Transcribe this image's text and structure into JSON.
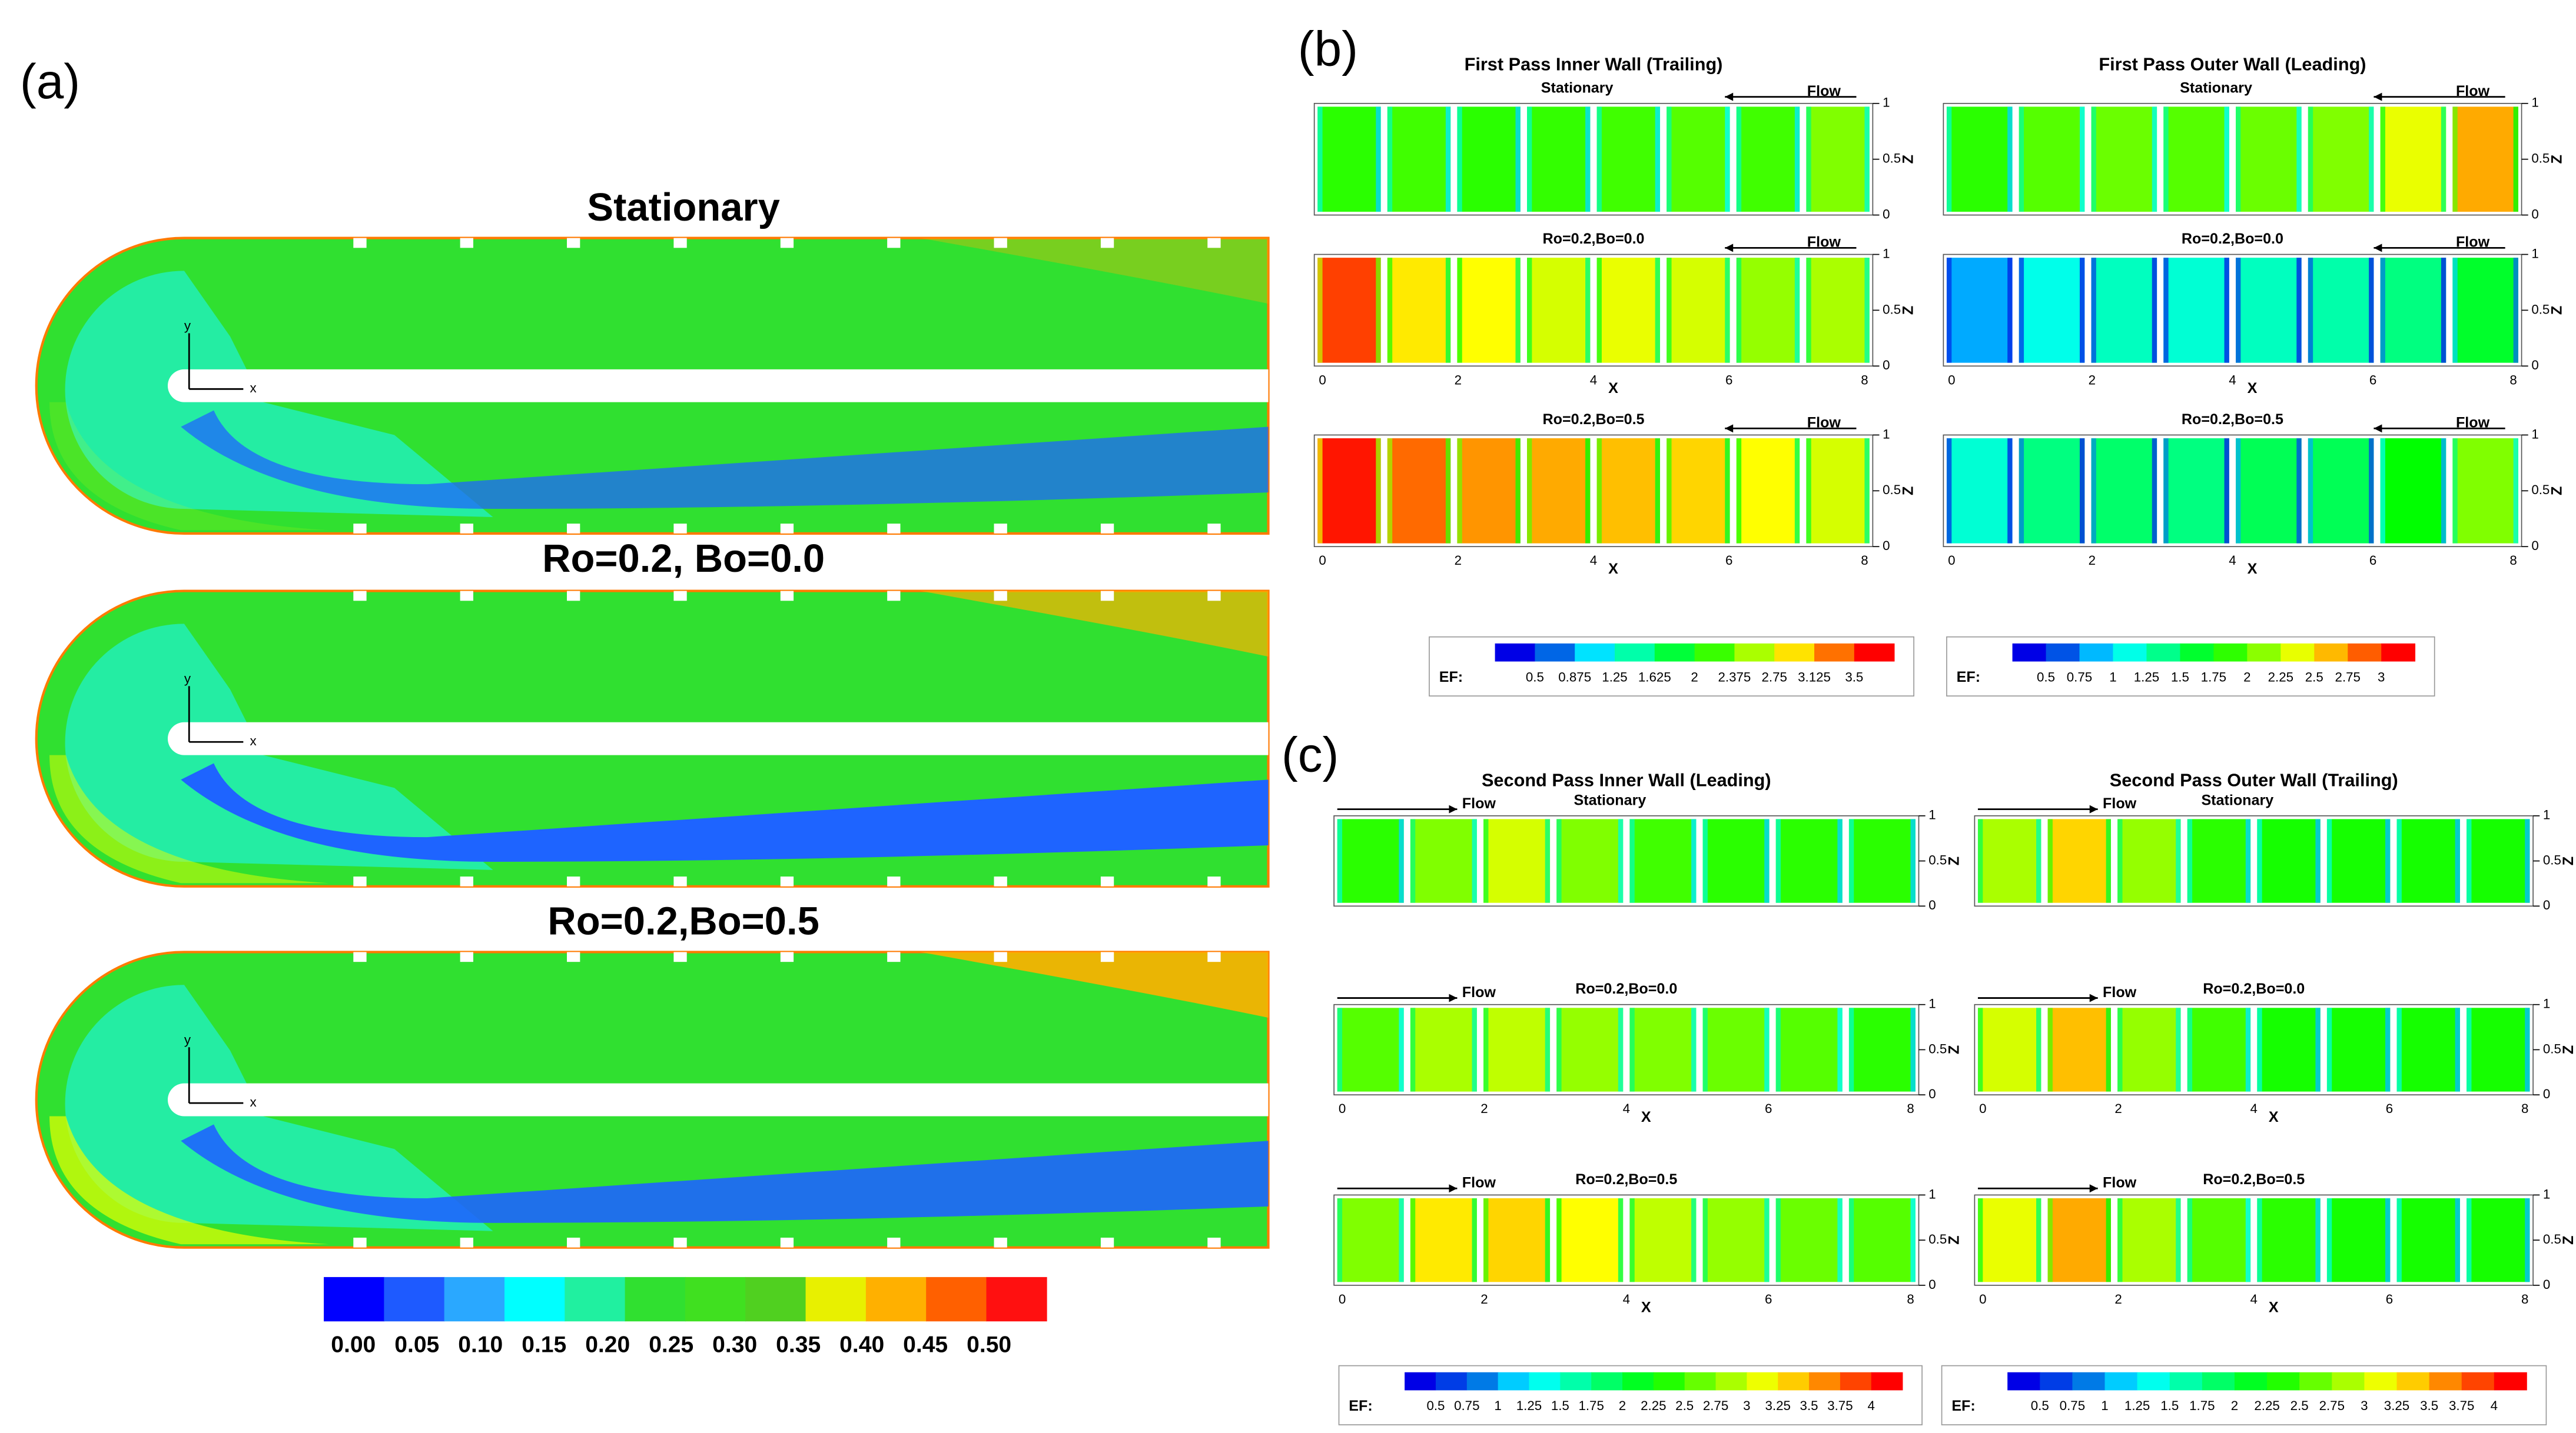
{
  "panel_a": {
    "label": "(a)",
    "axis_x": "x",
    "axis_y": "y",
    "plots": [
      {
        "title": "Stationary"
      },
      {
        "title": "Ro=0.2, Bo=0.0"
      },
      {
        "title": "Ro=0.2,Bo=0.5"
      }
    ],
    "colorbar": {
      "labels": [
        "0.00",
        "0.05",
        "0.10",
        "0.15",
        "0.20",
        "0.25",
        "0.30",
        "0.35",
        "0.40",
        "0.45",
        "0.50"
      ]
    }
  },
  "panel_b": {
    "label": "(b)",
    "groups": [
      {
        "title": "First Pass Inner Wall (Trailing)",
        "xlabel": "X",
        "zlabel": "Z",
        "xticks": [
          "0",
          "2",
          "4",
          "6",
          "8"
        ],
        "zticks": [
          "0",
          "0.5",
          "1"
        ],
        "plots": [
          {
            "title": "Stationary",
            "flow": "Flow"
          },
          {
            "title": "Ro=0.2,Bo=0.0",
            "flow": "Flow"
          },
          {
            "title": "Ro=0.2,Bo=0.5",
            "flow": "Flow"
          }
        ]
      },
      {
        "title": "First Pass Outer Wall (Leading)",
        "xlabel": "X",
        "zlabel": "Z",
        "xticks": [
          "0",
          "2",
          "4",
          "6",
          "8"
        ],
        "zticks": [
          "0",
          "0.5",
          "1"
        ],
        "plots": [
          {
            "title": "Stationary",
            "flow": "Flow"
          },
          {
            "title": "Ro=0.2,Bo=0.0",
            "flow": "Flow"
          },
          {
            "title": "Ro=0.2,Bo=0.5",
            "flow": "Flow"
          }
        ]
      }
    ],
    "colorbars": [
      {
        "prefix": "EF:",
        "labels": [
          "0.5",
          "0.875",
          "1.25",
          "1.625",
          "2",
          "2.375",
          "2.75",
          "3.125",
          "3.5"
        ]
      },
      {
        "prefix": "EF:",
        "labels": [
          "0.5",
          "0.75",
          "1",
          "1.25",
          "1.5",
          "1.75",
          "2",
          "2.25",
          "2.5",
          "2.75",
          "3"
        ]
      }
    ]
  },
  "panel_c": {
    "label": "(c)",
    "groups": [
      {
        "title": "Second Pass Inner Wall (Leading)",
        "xlabel": "X",
        "zlabel": "Z",
        "xticks": [
          "0",
          "2",
          "4",
          "6",
          "8"
        ],
        "zticks": [
          "0",
          "0.5",
          "1"
        ],
        "plots": [
          {
            "title": "Stationary",
            "flow": "Flow"
          },
          {
            "title": "Ro=0.2,Bo=0.0",
            "flow": "Flow"
          },
          {
            "title": "Ro=0.2,Bo=0.5",
            "flow": "Flow"
          }
        ]
      },
      {
        "title": "Second Pass Outer Wall (Trailing)",
        "xlabel": "X",
        "zlabel": "Z",
        "xticks": [
          "0",
          "2",
          "4",
          "6",
          "8"
        ],
        "zticks": [
          "0",
          "0.5",
          "1"
        ],
        "plots": [
          {
            "title": "Stationary",
            "flow": "Flow"
          },
          {
            "title": "Ro=0.2,Bo=0.0",
            "flow": "Flow"
          },
          {
            "title": "Ro=0.2,Bo=0.5",
            "flow": "Flow"
          }
        ]
      }
    ],
    "colorbars": [
      {
        "prefix": "EF:",
        "labels": [
          "0.5",
          "0.75",
          "1",
          "1.25",
          "1.5",
          "1.75",
          "2",
          "2.25",
          "2.5",
          "2.75",
          "3",
          "3.25",
          "3.5",
          "3.75",
          "4"
        ]
      },
      {
        "prefix": "EF:",
        "labels": [
          "0.5",
          "0.75",
          "1",
          "1.25",
          "1.5",
          "1.75",
          "2",
          "2.25",
          "2.5",
          "2.75",
          "3",
          "3.25",
          "3.5",
          "3.75",
          "4"
        ]
      }
    ]
  }
}
